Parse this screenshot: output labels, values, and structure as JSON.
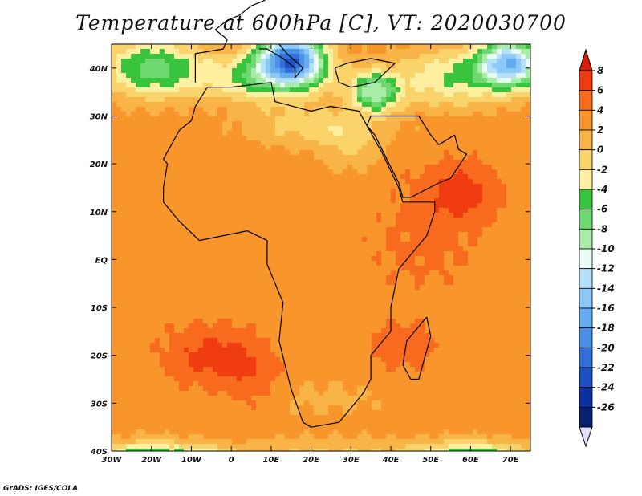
{
  "title": "Temperature at 600hPa [C], VT: 2020030700",
  "credit": "GrADS: IGES/COLA",
  "map": {
    "lon_range": [
      -30,
      75
    ],
    "lat_range": [
      -40,
      45
    ],
    "lon_ticks": [
      {
        "lon": -30,
        "label": "30W"
      },
      {
        "lon": -20,
        "label": "20W"
      },
      {
        "lon": -10,
        "label": "10W"
      },
      {
        "lon": 0,
        "label": "0"
      },
      {
        "lon": 10,
        "label": "10E"
      },
      {
        "lon": 20,
        "label": "20E"
      },
      {
        "lon": 30,
        "label": "30E"
      },
      {
        "lon": 40,
        "label": "40E"
      },
      {
        "lon": 50,
        "label": "50E"
      },
      {
        "lon": 60,
        "label": "60E"
      },
      {
        "lon": 70,
        "label": "70E"
      }
    ],
    "lat_ticks": [
      {
        "lat": 40,
        "label": "40N"
      },
      {
        "lat": 30,
        "label": "30N"
      },
      {
        "lat": 20,
        "label": "20N"
      },
      {
        "lat": 10,
        "label": "10N"
      },
      {
        "lat": 0,
        "label": "EQ"
      },
      {
        "lat": -10,
        "label": "10S"
      },
      {
        "lat": -20,
        "label": "20S"
      },
      {
        "lat": -30,
        "label": "30S"
      },
      {
        "lat": -40,
        "label": "40S"
      }
    ]
  },
  "colorbar": {
    "labels": [
      "8",
      "6",
      "4",
      "2",
      "0",
      "-2",
      "-4",
      "-6",
      "-8",
      "-10",
      "-12",
      "-14",
      "-16",
      "-18",
      "-20",
      "-22",
      "-24",
      "-26"
    ],
    "colors": [
      "#f03c10",
      "#f86a1e",
      "#f8962c",
      "#f8b446",
      "#fad46a",
      "#fef0a0",
      "#38c43c",
      "#70d870",
      "#a8eca8",
      "#e8fcf4",
      "#b4e0fc",
      "#8cc8f8",
      "#64acf0",
      "#4890e8",
      "#3070d8",
      "#1c50c0",
      "#0c30a0",
      "#082070"
    ],
    "top_color": "#d81e0a",
    "bottom_color": "#e0e0fc"
  },
  "field": {
    "background_temp": 3,
    "blobs": [
      {
        "lon": 15,
        "lat": 42,
        "slon": 8,
        "slat": 5,
        "amp": -22
      },
      {
        "lon": 8,
        "lat": 38,
        "slon": 16,
        "slat": 5,
        "amp": -8
      },
      {
        "lon": -20,
        "lat": 40,
        "slon": 12,
        "slat": 6,
        "amp": -10
      },
      {
        "lon": 36,
        "lat": 35,
        "slon": 6,
        "slat": 4,
        "amp": -12
      },
      {
        "lon": 70,
        "lat": 41,
        "slon": 8,
        "slat": 5,
        "amp": -18
      },
      {
        "lon": 55,
        "lat": 38,
        "slon": 14,
        "slat": 6,
        "amp": -7
      },
      {
        "lon": 20,
        "lat": 28,
        "slon": 16,
        "slat": 4,
        "amp": -4
      },
      {
        "lon": 30,
        "lat": 24,
        "slon": 8,
        "slat": 5,
        "amp": -3
      },
      {
        "lon": 57,
        "lat": 14,
        "slon": 10,
        "slat": 6,
        "amp": 4
      },
      {
        "lon": 48,
        "lat": 3,
        "slon": 14,
        "slat": 10,
        "amp": 1.5
      },
      {
        "lon": -5,
        "lat": -20,
        "slon": 11,
        "slat": 6,
        "amp": 4
      },
      {
        "lon": 5,
        "lat": -25,
        "slon": 7,
        "slat": 6,
        "amp": 2
      },
      {
        "lon": 42,
        "lat": -18,
        "slon": 8,
        "slat": 5,
        "amp": 2.5
      },
      {
        "lon": 24,
        "lat": -29,
        "slon": 16,
        "slat": 4,
        "amp": -1.5
      },
      {
        "lon": -20,
        "lat": -41,
        "slon": 14,
        "slat": 3,
        "amp": -9
      },
      {
        "lon": -5,
        "lat": -44,
        "slon": 6,
        "slat": 3,
        "amp": -16
      },
      {
        "lon": 60,
        "lat": -41,
        "slon": 14,
        "slat": 3,
        "amp": -9
      },
      {
        "lon": 25,
        "lat": -40,
        "slon": 22,
        "slat": 3,
        "amp": -3
      }
    ]
  }
}
